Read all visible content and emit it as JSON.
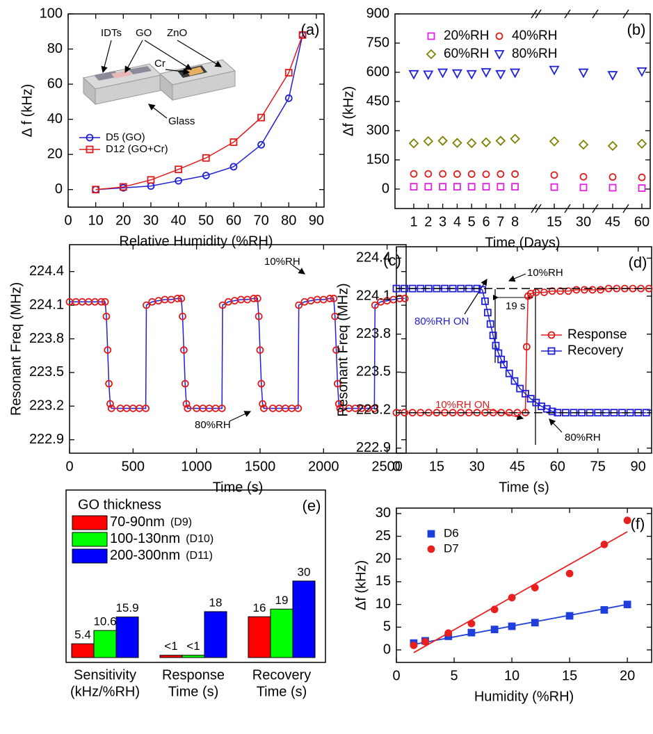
{
  "chart_data": [
    {
      "type": "line",
      "panel_label": "(a)",
      "xlabel": "Relative Humidity (%RH)",
      "ylabel": "Δ f (kHz)",
      "xlim": [
        0,
        92.8
      ],
      "ylim": [
        -10,
        100
      ],
      "xticks": [
        0,
        10,
        20,
        30,
        40,
        50,
        60,
        70,
        80,
        90
      ],
      "yticks": [
        0,
        20,
        40,
        60,
        80,
        100
      ],
      "annotations": [
        "IDTs",
        "GO",
        "ZnO",
        "Cr",
        "Glass"
      ],
      "x": [
        10,
        20,
        30,
        40,
        50,
        60,
        70,
        80,
        85
      ],
      "series": [
        {
          "name": "D5 (GO)",
          "color": "#1f1fd6",
          "marker": "circle",
          "values": [
            0,
            1,
            2,
            5,
            8,
            13,
            25.5,
            52,
            88
          ]
        },
        {
          "name": "D12 (GO+Cr)",
          "color": "#e01b1b",
          "marker": "square",
          "values": [
            0,
            1.5,
            5.5,
            11.5,
            18,
            27,
            41,
            66.5,
            88
          ]
        }
      ]
    },
    {
      "type": "scatter",
      "panel_label": "(b)",
      "xlabel": "Time (Days)",
      "ylabel": "Δf (kHz)",
      "categories": [
        "1",
        "2",
        "3",
        "4",
        "5",
        "6",
        "7",
        "8",
        "15",
        "30",
        "45",
        "60"
      ],
      "ylim": [
        -100,
        900
      ],
      "yticks": [
        0,
        150,
        300,
        450,
        600,
        750,
        900
      ],
      "series": [
        {
          "name": "20%RH",
          "color": "#e21fe2",
          "marker": "square",
          "values": [
            12,
            12,
            12,
            12,
            12,
            12,
            12,
            12,
            10,
            8,
            7,
            5
          ]
        },
        {
          "name": "40%RH",
          "color": "#e01b1b",
          "marker": "circle",
          "values": [
            78,
            78,
            78,
            77,
            77,
            76,
            77,
            77,
            72,
            63,
            62,
            60
          ]
        },
        {
          "name": "60%RH",
          "color": "#7f7f00",
          "marker": "diamond",
          "values": [
            235,
            246,
            248,
            237,
            236,
            240,
            248,
            258,
            245,
            228,
            222,
            233
          ]
        },
        {
          "name": "80%RH",
          "color": "#1f1fd6",
          "marker": "triangle-down",
          "values": [
            590,
            588,
            598,
            594,
            590,
            600,
            590,
            598,
            612,
            598,
            585,
            604
          ]
        }
      ]
    },
    {
      "type": "line",
      "panel_label": "(c)",
      "xlabel": "Time (s)",
      "ylabel": "Resonant Freq (MHz)",
      "xlim": [
        0,
        2650
      ],
      "ylim": [
        222.78,
        224.64
      ],
      "xticks": [
        0,
        500,
        1000,
        1500,
        2000,
        2500
      ],
      "yticks": [
        222.9,
        223.2,
        223.5,
        223.8,
        224.1,
        224.4
      ],
      "annotations": [
        "10%RH",
        "80%RH"
      ],
      "series": [
        {
          "color": "#1f1fd6",
          "marker": "circle",
          "marker_color": "#e01b1b",
          "x": [
            0,
            50,
            100,
            150,
            200,
            250,
            280,
            290,
            300,
            310,
            320,
            330,
            400,
            450,
            500,
            550,
            600,
            605,
            650,
            700,
            750,
            800,
            850,
            880,
            890,
            900,
            910,
            920,
            930,
            1000,
            1050,
            1100,
            1150,
            1200,
            1205,
            1250,
            1300,
            1350,
            1400,
            1450,
            1480,
            1490,
            1500,
            1510,
            1520,
            1530,
            1600,
            1650,
            1700,
            1750,
            1800,
            1805,
            1850,
            1900,
            1950,
            2000,
            2050,
            2080,
            2090,
            2100,
            2110,
            2120,
            2130,
            2200,
            2250,
            2300,
            2350,
            2400,
            2405,
            2450,
            2500,
            2550,
            2600,
            2640
          ],
          "values": [
            224.13,
            224.13,
            224.13,
            224.13,
            224.13,
            224.13,
            224.13,
            224.0,
            223.7,
            223.4,
            223.22,
            223.18,
            223.18,
            223.18,
            223.18,
            223.18,
            223.18,
            224.1,
            224.13,
            224.14,
            224.15,
            224.15,
            224.16,
            224.16,
            224.0,
            223.7,
            223.4,
            223.22,
            223.18,
            223.18,
            223.18,
            223.18,
            223.18,
            223.18,
            224.1,
            224.13,
            224.14,
            224.15,
            224.15,
            224.16,
            224.16,
            224.0,
            223.7,
            223.4,
            223.22,
            223.18,
            223.18,
            223.18,
            223.18,
            223.18,
            223.18,
            224.1,
            224.13,
            224.14,
            224.15,
            224.15,
            224.16,
            224.16,
            224.0,
            223.7,
            223.4,
            223.22,
            223.18,
            223.18,
            223.18,
            223.18,
            223.18,
            223.18,
            224.1,
            224.13,
            224.14,
            224.15,
            224.16,
            224.16
          ]
        }
      ]
    },
    {
      "type": "line",
      "panel_label": "(d)",
      "xlabel": "Time (s)",
      "ylabel": "Resonant Freq (MHz)",
      "xlim": [
        0,
        95
      ],
      "ylim": [
        222.86,
        224.49
      ],
      "xticks": [
        0,
        15,
        30,
        45,
        60,
        75,
        90
      ],
      "yticks": [
        222.9,
        223.2,
        223.5,
        223.8,
        224.1,
        224.4
      ],
      "annotations": [
        "10%RH",
        "80%RH ON",
        "19 s",
        "10%RH ON",
        "80%RH"
      ],
      "reference_lines": [
        224.16,
        223.18
      ],
      "series": [
        {
          "name": "Response",
          "color": "#e01b1b",
          "marker": "circle",
          "x": [
            0,
            3,
            6,
            9,
            12,
            15,
            18,
            21,
            24,
            27,
            30,
            33,
            36,
            39,
            42,
            45,
            48,
            48.5,
            49,
            50,
            52,
            55,
            58,
            61,
            64,
            67,
            70,
            73,
            76,
            79,
            82,
            85,
            88,
            91,
            94
          ],
          "values": [
            223.18,
            223.18,
            223.18,
            223.18,
            223.18,
            223.18,
            223.18,
            223.18,
            223.18,
            223.18,
            223.18,
            223.18,
            223.18,
            223.18,
            223.18,
            223.18,
            223.18,
            223.7,
            224.1,
            224.12,
            224.13,
            224.13,
            224.14,
            224.14,
            224.14,
            224.15,
            224.15,
            224.15,
            224.15,
            224.16,
            224.16,
            224.16,
            224.16,
            224.16,
            224.16
          ]
        },
        {
          "name": "Recovery",
          "color": "#1f1fd6",
          "marker": "square",
          "x": [
            0,
            3,
            6,
            9,
            12,
            15,
            18,
            21,
            24,
            27,
            30,
            32,
            33,
            34,
            35,
            36,
            37,
            38,
            39,
            40,
            42,
            44,
            46,
            48,
            50,
            52,
            54,
            56,
            58,
            60,
            63,
            66,
            69,
            72,
            75,
            78,
            81,
            84,
            87,
            90,
            93
          ],
          "values": [
            224.16,
            224.16,
            224.16,
            224.16,
            224.16,
            224.16,
            224.16,
            224.16,
            224.16,
            224.16,
            224.16,
            224.15,
            224.06,
            223.97,
            223.88,
            223.79,
            223.71,
            223.65,
            223.6,
            223.56,
            223.49,
            223.43,
            223.37,
            223.33,
            223.29,
            223.26,
            223.23,
            223.21,
            223.19,
            223.18,
            223.18,
            223.18,
            223.18,
            223.18,
            223.18,
            223.18,
            223.18,
            223.18,
            223.18,
            223.18,
            223.18
          ]
        }
      ]
    },
    {
      "type": "bar",
      "panel_label": "(e)",
      "legend_title": "GO thickness",
      "categories": [
        [
          "Sensitivity",
          "(kHz/%RH)"
        ],
        [
          "Response",
          "Time (s)"
        ],
        [
          "Recovery",
          "Time (s)"
        ]
      ],
      "series": [
        {
          "name": "70-90nm",
          "device": "(D9)",
          "color": "#ff0000",
          "values": [
            5.4,
            0.9,
            16
          ],
          "value_labels": [
            "5.4",
            "<1",
            "16"
          ]
        },
        {
          "name": "100-130nm",
          "device": "(D10)",
          "color": "#00ff00",
          "values": [
            10.6,
            0.9,
            19
          ],
          "value_labels": [
            "10.6",
            "<1",
            "19"
          ]
        },
        {
          "name": "200-300nm",
          "device": "(D11)",
          "color": "#0000ff",
          "values": [
            15.9,
            18,
            30
          ],
          "value_labels": [
            "15.9",
            "18",
            "30"
          ]
        }
      ]
    },
    {
      "type": "scatter",
      "panel_label": "(f)",
      "xlabel": "Humidity (%RH)",
      "ylabel": "Δf (kHz)",
      "xlim": [
        0,
        22.1
      ],
      "ylim": [
        -2.75,
        31.2
      ],
      "xticks": [
        0,
        5,
        10,
        15,
        20
      ],
      "yticks": [
        0,
        5,
        10,
        15,
        20,
        25,
        30
      ],
      "fit_x": [
        1.5,
        20
      ],
      "series": [
        {
          "name": "D6",
          "color": "#1f3fdb",
          "marker": "square",
          "filled": true,
          "x": [
            1.5,
            2.5,
            4.5,
            6.5,
            8.5,
            10,
            12,
            15,
            18,
            20
          ],
          "values": [
            1.5,
            2,
            3,
            3.8,
            4.5,
            5.2,
            6,
            7.5,
            8.8,
            10
          ],
          "fit": [
            1.2,
            10
          ]
        },
        {
          "name": "D7",
          "color": "#e82020",
          "marker": "circle",
          "filled": true,
          "x": [
            1.5,
            2.5,
            4.5,
            6.5,
            8.5,
            10,
            12,
            15,
            18,
            20
          ],
          "values": [
            1,
            1.8,
            3.7,
            5.8,
            8.9,
            11.5,
            13.7,
            16.8,
            23.2,
            28.5
          ],
          "fit": [
            -0.6,
            26
          ]
        }
      ]
    }
  ]
}
